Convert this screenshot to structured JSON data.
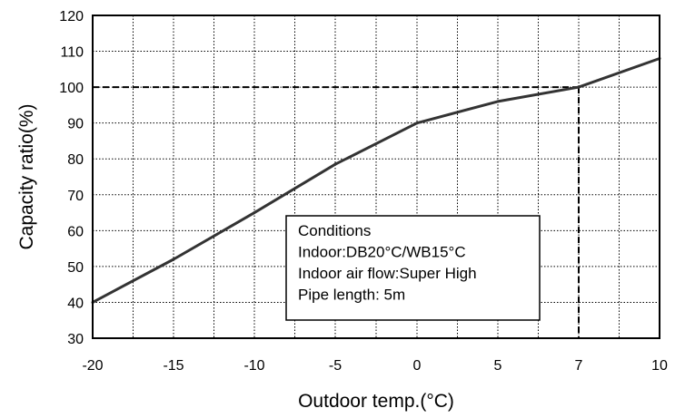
{
  "chart_data": {
    "type": "line",
    "x_tick_labels": [
      "-20",
      "-15",
      "-10",
      "-5",
      "0",
      "5",
      "7",
      "10"
    ],
    "x_ticks": [
      -20,
      -15,
      -10,
      -5,
      0,
      5,
      7,
      10
    ],
    "y_tick_labels": [
      "30",
      "40",
      "50",
      "60",
      "70",
      "80",
      "90",
      "100",
      "110",
      "120"
    ],
    "y_ticks": [
      30,
      40,
      50,
      60,
      70,
      80,
      90,
      100,
      110,
      120
    ],
    "xlim": [
      -20,
      10
    ],
    "ylim": [
      30,
      120
    ],
    "x_axis_note": "Non-uniform horizontal scale: the gridline spacing between 5 and 7 differs from the other intervals",
    "xlabel": "Outdoor temp.(°C)",
    "ylabel": "Capacity ratio(%)",
    "grid": true,
    "series": [
      {
        "x": [
          -20,
          -15,
          -10,
          -5,
          0,
          5,
          7,
          10
        ],
        "y": [
          40,
          52,
          65,
          78.5,
          90,
          96,
          100,
          108
        ]
      }
    ],
    "reference_point": {
      "x": 7,
      "y": 100
    },
    "annotation": {
      "lines": [
        "Conditions",
        "Indoor:DB20°C/WB15°C",
        "Indoor air flow:Super High",
        "Pipe length: 5m"
      ]
    },
    "colors": {
      "line": "#333333",
      "grid": "#000000",
      "frame": "#000000"
    }
  }
}
